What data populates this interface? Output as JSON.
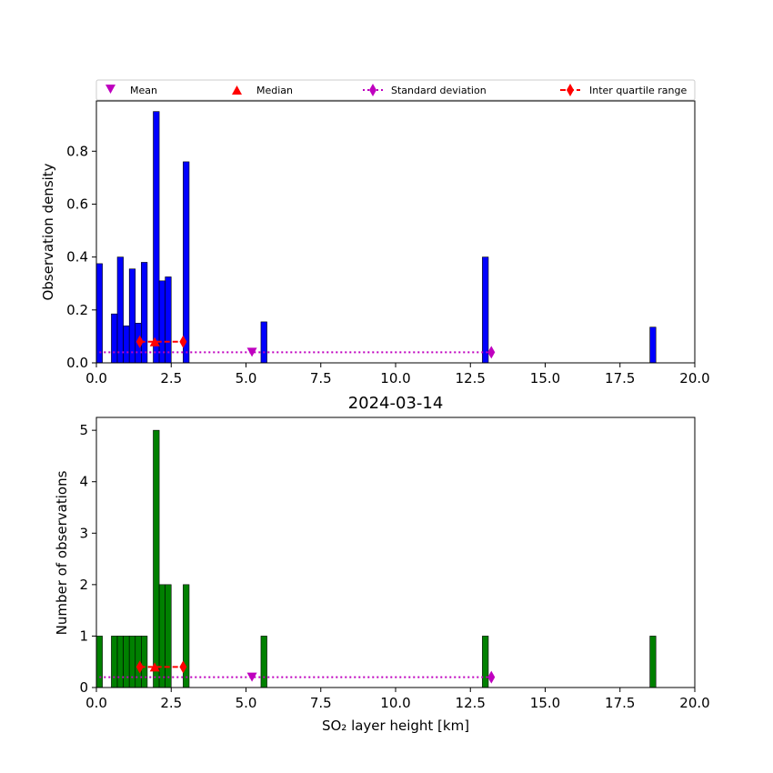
{
  "chart_data": [
    {
      "type": "bar",
      "panel": "top",
      "ylabel": "Observation density",
      "xlim": [
        0,
        20
      ],
      "ylim": [
        0,
        0.99
      ],
      "xticks": [
        "0.0",
        "2.5",
        "5.0",
        "7.5",
        "10.0",
        "12.5",
        "15.0",
        "17.5",
        "20.0"
      ],
      "yticks": [
        "0.0",
        "0.2",
        "0.4",
        "0.6",
        "0.8"
      ],
      "ytick_values": [
        0,
        0.2,
        0.4,
        0.6,
        0.8
      ],
      "bar_color": "#0000ff",
      "bar_width": 0.2,
      "bars": [
        {
          "x": 0.0,
          "value": 0.375
        },
        {
          "x": 0.5,
          "value": 0.185
        },
        {
          "x": 0.7,
          "value": 0.4
        },
        {
          "x": 0.9,
          "value": 0.14
        },
        {
          "x": 1.1,
          "value": 0.355
        },
        {
          "x": 1.3,
          "value": 0.15
        },
        {
          "x": 1.5,
          "value": 0.38
        },
        {
          "x": 1.9,
          "value": 0.95
        },
        {
          "x": 2.1,
          "value": 0.31
        },
        {
          "x": 2.3,
          "value": 0.325
        },
        {
          "x": 2.9,
          "value": 0.76
        },
        {
          "x": 5.5,
          "value": 0.155
        },
        {
          "x": 12.9,
          "value": 0.4
        },
        {
          "x": 18.5,
          "value": 0.135
        }
      ],
      "mean": {
        "x": 5.2,
        "y": 0.04
      },
      "median": {
        "x": 1.95,
        "y": 0.08
      },
      "std_range": {
        "x": [
          0.1,
          13.2
        ],
        "y": 0.04
      },
      "iqr": {
        "x": [
          1.45,
          1.95,
          2.9
        ],
        "y": 0.08
      }
    },
    {
      "type": "bar",
      "panel": "bottom",
      "title": "2024-03-14",
      "xlabel": "SO₂ layer height [km]",
      "ylabel": "Number of observations",
      "xlim": [
        0,
        20
      ],
      "ylim": [
        0,
        5.25
      ],
      "xticks": [
        "0.0",
        "2.5",
        "5.0",
        "7.5",
        "10.0",
        "12.5",
        "15.0",
        "17.5",
        "20.0"
      ],
      "yticks": [
        "0",
        "1",
        "2",
        "3",
        "4",
        "5"
      ],
      "ytick_values": [
        0,
        1,
        2,
        3,
        4,
        5
      ],
      "bar_color": "#008000",
      "bar_width": 0.2,
      "bars": [
        {
          "x": 0.0,
          "value": 1
        },
        {
          "x": 0.5,
          "value": 1
        },
        {
          "x": 0.7,
          "value": 1
        },
        {
          "x": 0.9,
          "value": 1
        },
        {
          "x": 1.1,
          "value": 1
        },
        {
          "x": 1.3,
          "value": 1
        },
        {
          "x": 1.5,
          "value": 1
        },
        {
          "x": 1.9,
          "value": 5
        },
        {
          "x": 2.1,
          "value": 2
        },
        {
          "x": 2.3,
          "value": 2
        },
        {
          "x": 2.9,
          "value": 2
        },
        {
          "x": 5.5,
          "value": 1
        },
        {
          "x": 12.9,
          "value": 1
        },
        {
          "x": 18.5,
          "value": 1
        }
      ],
      "mean": {
        "x": 5.2,
        "y": 0.2
      },
      "median": {
        "x": 1.95,
        "y": 0.4
      },
      "std_range": {
        "x": [
          0.1,
          13.2
        ],
        "y": 0.2
      },
      "iqr": {
        "x": [
          1.45,
          1.95,
          2.9
        ],
        "y": 0.4
      }
    }
  ],
  "legend": {
    "placement": "top",
    "items": [
      {
        "label": "Mean",
        "marker": "triangle-down",
        "color": "#bf00bf"
      },
      {
        "label": "Median",
        "marker": "triangle-up",
        "color": "#ff0000"
      },
      {
        "label": "Standard deviation",
        "marker": "diamond-dotted",
        "color": "#bf00bf"
      },
      {
        "label": "Inter quartile range",
        "marker": "diamond-dashed",
        "color": "#ff0000"
      }
    ]
  }
}
